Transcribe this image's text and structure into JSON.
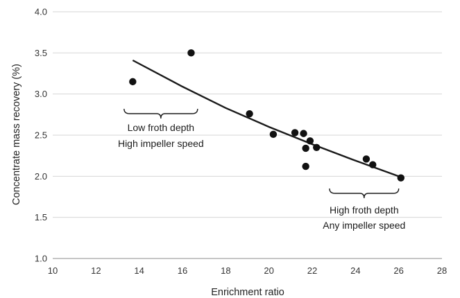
{
  "chart_data": {
    "type": "scatter",
    "xlabel": "Enrichment ratio",
    "ylabel": "Concentrate mass recovery (%)",
    "xlim": [
      10,
      28
    ],
    "ylim": [
      1.0,
      4.0
    ],
    "xticks": [
      "10",
      "12",
      "14",
      "16",
      "18",
      "20",
      "22",
      "24",
      "26",
      "28"
    ],
    "yticks": [
      "1.0",
      "1.5",
      "2.0",
      "2.5",
      "3.0",
      "3.5",
      "4.0"
    ],
    "grid": "horizontal",
    "points": [
      {
        "x": 13.7,
        "y": 3.15
      },
      {
        "x": 16.4,
        "y": 3.5
      },
      {
        "x": 19.1,
        "y": 2.76
      },
      {
        "x": 20.2,
        "y": 2.51
      },
      {
        "x": 21.2,
        "y": 2.53
      },
      {
        "x": 21.6,
        "y": 2.52
      },
      {
        "x": 21.9,
        "y": 2.43
      },
      {
        "x": 21.7,
        "y": 2.34
      },
      {
        "x": 22.2,
        "y": 2.35
      },
      {
        "x": 21.7,
        "y": 2.12
      },
      {
        "x": 24.5,
        "y": 2.21
      },
      {
        "x": 24.8,
        "y": 2.14
      },
      {
        "x": 26.1,
        "y": 1.98
      }
    ],
    "trendline": [
      {
        "x": 13.7,
        "y": 3.41
      },
      {
        "x": 16.0,
        "y": 3.09
      },
      {
        "x": 18.0,
        "y": 2.83
      },
      {
        "x": 20.0,
        "y": 2.6
      },
      {
        "x": 22.0,
        "y": 2.39
      },
      {
        "x": 24.0,
        "y": 2.19
      },
      {
        "x": 26.1,
        "y": 1.99
      }
    ],
    "annotations": [
      {
        "lines": [
          "Low froth depth",
          "High impeller speed"
        ],
        "x_from": 13.3,
        "x_to": 16.7
      },
      {
        "lines": [
          "High froth depth",
          "Any impeller speed"
        ],
        "x_from": 22.8,
        "x_to": 26.0
      }
    ]
  }
}
